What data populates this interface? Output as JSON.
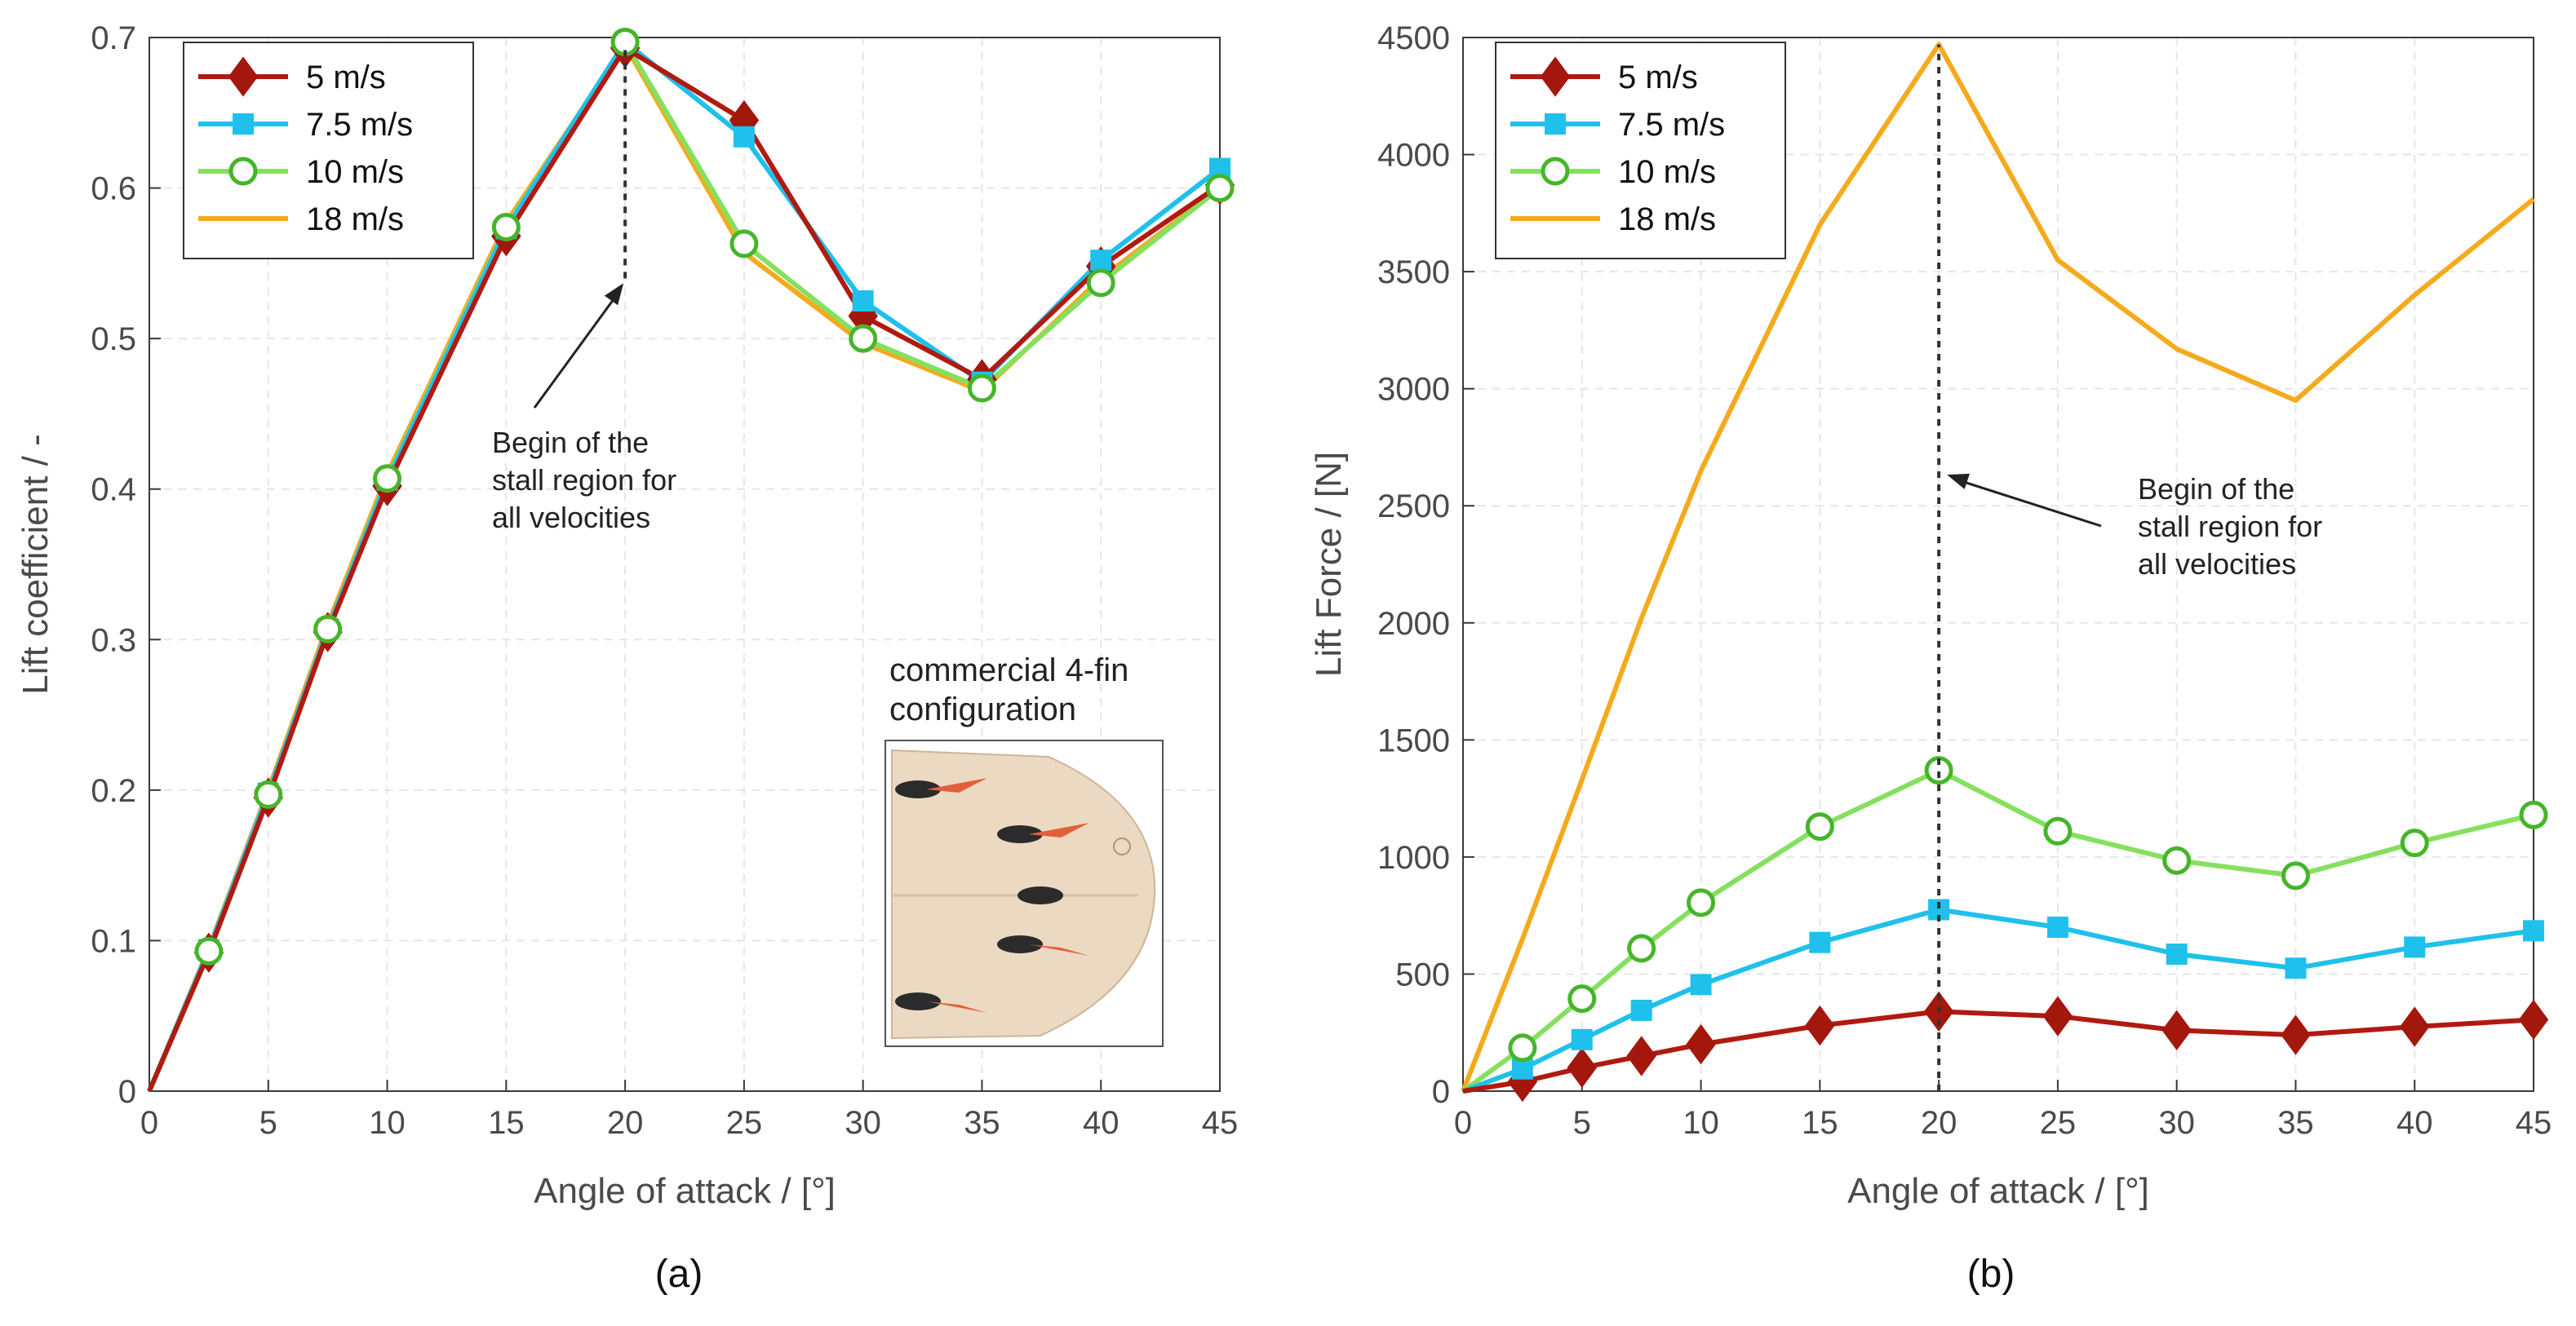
{
  "colors": {
    "s5": "#b01a10",
    "s75": "#1fc0ec",
    "s10": "#86e060",
    "s18": "#f5aa1c",
    "grid": "#e6e6e6",
    "axis": "#3a3a3a"
  },
  "chart_data": [
    {
      "type": "line",
      "panel_label": "(a)",
      "xlabel": "Angle of attack / [°]",
      "ylabel": "Lift coefficient / -",
      "xlim": [
        0,
        45
      ],
      "ylim": [
        0,
        0.7
      ],
      "xticks": [
        0,
        5,
        10,
        15,
        20,
        25,
        30,
        35,
        40,
        45
      ],
      "yticks": [
        0,
        0.1,
        0.2,
        0.3,
        0.4,
        0.5,
        0.6,
        0.7
      ],
      "grid": true,
      "legend": "top-left",
      "series": [
        {
          "name": "5 m/s",
          "marker": "diamond",
          "color": "#b01a10",
          "x": [
            0,
            2.5,
            5,
            7.5,
            10,
            15,
            20,
            25,
            30,
            35,
            40,
            45
          ],
          "y": [
            0,
            0.092,
            0.195,
            0.305,
            0.402,
            0.568,
            0.693,
            0.645,
            0.515,
            0.473,
            0.548,
            0.602
          ]
        },
        {
          "name": "7.5 m/s",
          "marker": "square",
          "color": "#1fc0ec",
          "x": [
            0,
            2.5,
            5,
            7.5,
            10,
            15,
            20,
            25,
            30,
            35,
            40,
            45
          ],
          "y": [
            0,
            0.094,
            0.198,
            0.307,
            0.406,
            0.573,
            0.697,
            0.634,
            0.525,
            0.471,
            0.552,
            0.613
          ]
        },
        {
          "name": "10 m/s",
          "marker": "circle",
          "color": "#86e060",
          "x": [
            0,
            2.5,
            5,
            7.5,
            10,
            15,
            20,
            25,
            30,
            35,
            40,
            45
          ],
          "y": [
            0,
            0.093,
            0.197,
            0.307,
            0.407,
            0.574,
            0.697,
            0.563,
            0.5,
            0.467,
            0.537,
            0.6
          ]
        },
        {
          "name": "18 m/s",
          "marker": "none",
          "color": "#f5aa1c",
          "x": [
            0,
            2.5,
            5,
            7.5,
            10,
            15,
            20,
            25,
            30,
            35,
            40,
            45
          ],
          "y": [
            0,
            0.095,
            0.2,
            0.31,
            0.41,
            0.577,
            0.695,
            0.557,
            0.497,
            0.465,
            0.54,
            0.6
          ]
        }
      ],
      "stall_line": {
        "x": 20,
        "y_from": 0.54,
        "y_to": 0.695
      },
      "annotation": {
        "lines": [
          "Begin of the",
          "stall region for",
          "all velocities"
        ],
        "arrow_to": [
          20,
          0.54
        ]
      },
      "inset": {
        "title_lines": [
          "commercial 4-fin",
          "configuration"
        ],
        "image_alt": "surfboard tail with four fins"
      }
    },
    {
      "type": "line",
      "panel_label": "(b)",
      "xlabel": "Angle of attack / [°]",
      "ylabel": "Lift Force / [N]",
      "xlim": [
        0,
        45
      ],
      "ylim": [
        0,
        4500
      ],
      "xticks": [
        0,
        5,
        10,
        15,
        20,
        25,
        30,
        35,
        40,
        45
      ],
      "yticks": [
        0,
        500,
        1000,
        1500,
        2000,
        2500,
        3000,
        3500,
        4000,
        4500
      ],
      "grid": true,
      "legend": "top-left",
      "series": [
        {
          "name": "5 m/s",
          "marker": "diamond",
          "color": "#b01a10",
          "x": [
            0,
            2.5,
            5,
            7.5,
            10,
            15,
            20,
            25,
            30,
            35,
            40,
            45
          ],
          "y": [
            0,
            40,
            100,
            150,
            200,
            280,
            340,
            320,
            260,
            240,
            275,
            305
          ]
        },
        {
          "name": "7.5 m/s",
          "marker": "square",
          "color": "#1fc0ec",
          "x": [
            0,
            2.5,
            5,
            7.5,
            10,
            15,
            20,
            25,
            30,
            35,
            40,
            45
          ],
          "y": [
            0,
            95,
            220,
            345,
            455,
            635,
            775,
            700,
            585,
            525,
            615,
            685
          ]
        },
        {
          "name": "10 m/s",
          "marker": "circle",
          "color": "#86e060",
          "x": [
            0,
            2.5,
            5,
            7.5,
            10,
            15,
            20,
            25,
            30,
            35,
            40,
            45
          ],
          "y": [
            0,
            185,
            395,
            610,
            805,
            1130,
            1370,
            1110,
            985,
            920,
            1060,
            1180
          ]
        },
        {
          "name": "18 m/s",
          "marker": "none",
          "color": "#f5aa1c",
          "x": [
            0,
            2.5,
            5,
            7.5,
            10,
            15,
            20,
            25,
            30,
            35,
            40,
            45
          ],
          "y": [
            0,
            650,
            1330,
            2020,
            2650,
            3700,
            4470,
            3550,
            3170,
            2950,
            3400,
            3810
          ]
        }
      ],
      "stall_line": {
        "x": 20,
        "y_from": 0,
        "y_to": 4470
      },
      "annotation": {
        "lines": [
          "Begin of the",
          "stall region for",
          "all velocities"
        ],
        "arrow_to": [
          20,
          2650
        ]
      }
    }
  ]
}
